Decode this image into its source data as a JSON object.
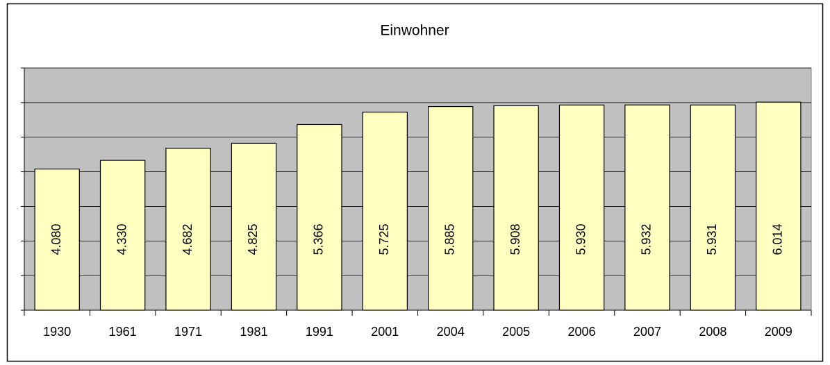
{
  "chart_data": {
    "type": "bar",
    "title": "Einwohner",
    "categories": [
      "1930",
      "1961",
      "1971",
      "1981",
      "1991",
      "2001",
      "2004",
      "2005",
      "2006",
      "2007",
      "2008",
      "2009"
    ],
    "values": [
      4080,
      4330,
      4682,
      4825,
      5366,
      5725,
      5885,
      5908,
      5930,
      5932,
      5931,
      6014
    ],
    "value_labels": [
      "4.080",
      "4.330",
      "4.682",
      "4.825",
      "5.366",
      "5.725",
      "5.885",
      "5.908",
      "5.930",
      "5.932",
      "5.931",
      "6.014"
    ],
    "color": "#ffffc0",
    "ylim": [
      0,
      7000
    ],
    "yticks": [
      0,
      1000,
      2000,
      3000,
      4000,
      5000,
      6000,
      7000
    ],
    "grid": true
  }
}
